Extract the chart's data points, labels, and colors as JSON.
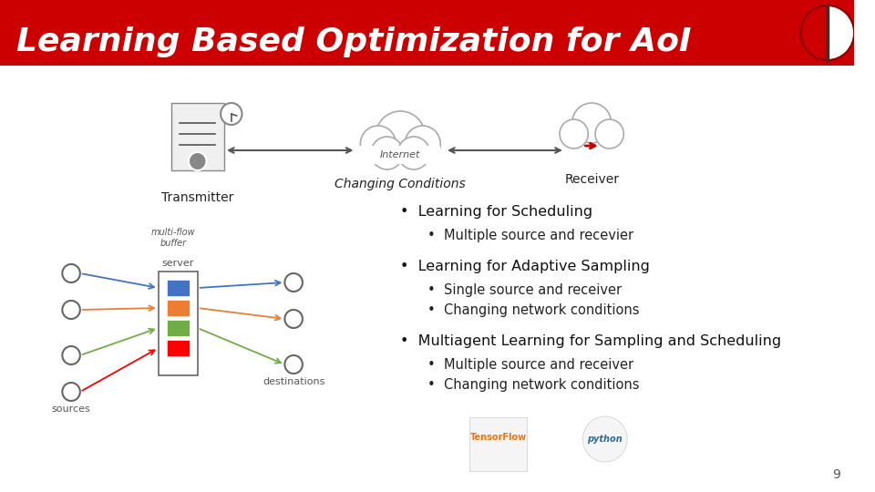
{
  "title": "Learning Based Optimization for AoI",
  "title_bg_color": "#CC0000",
  "title_text_color": "#FFFFFF",
  "bg_color": "#FFFFFF",
  "label_transmitter": "Transmitter",
  "label_changing": "Changing Conditions",
  "label_receiver": "Receiver",
  "bullet_points": [
    {
      "text": "Learning for Scheduling",
      "level": 1,
      "sub": [
        "Multiple source and recevier"
      ]
    },
    {
      "text": "Learning for Adaptive Sampling",
      "level": 1,
      "sub": [
        "Single source and receiver",
        "Changing network conditions"
      ]
    },
    {
      "text": "Multiagent Learning for Sampling and Scheduling",
      "level": 1,
      "sub": [
        "Multiple source and receiver",
        "Changing network conditions"
      ]
    }
  ],
  "page_number": "9",
  "accent_color": "#CC0000"
}
